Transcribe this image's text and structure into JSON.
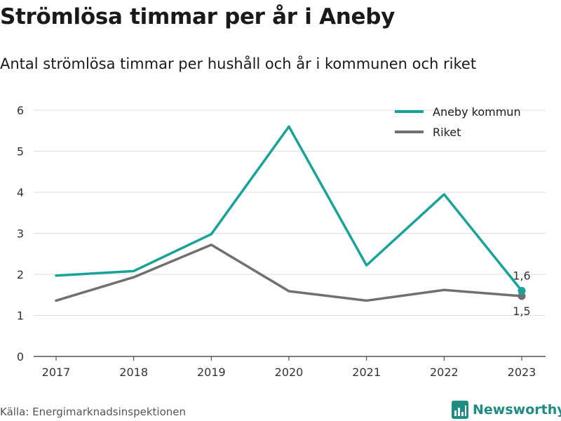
{
  "title": "Strömlösa timmar per år i Aneby",
  "subtitle": "Antal strömlösa timmar per hushåll och år i kommunen och riket",
  "source": "Källa: Energimarknadsinspektionen",
  "brand": {
    "name": "Newsworthy",
    "icon": "newsworthy-logo-icon",
    "color": "#1f8b83"
  },
  "chart_data": {
    "type": "line",
    "x": [
      "2017",
      "2018",
      "2019",
      "2020",
      "2021",
      "2022",
      "2023"
    ],
    "series": [
      {
        "name": "Aneby kommun",
        "color": "#17a398",
        "values": [
          1.97,
          2.08,
          2.98,
          5.6,
          2.22,
          3.95,
          1.6
        ],
        "end_label": "1,6"
      },
      {
        "name": "Riket",
        "color": "#707070",
        "values": [
          1.36,
          1.93,
          2.72,
          1.59,
          1.36,
          1.62,
          1.47
        ],
        "end_label": "1,5"
      }
    ],
    "ylim": [
      0,
      6
    ],
    "yticks": [
      "0",
      "1",
      "2",
      "3",
      "4",
      "5",
      "6"
    ],
    "grid": true,
    "legend": "top-right",
    "xlabel": "",
    "ylabel": ""
  }
}
